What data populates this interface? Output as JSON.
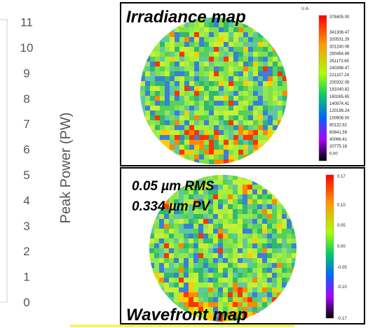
{
  "axis": {
    "label": "Peak Power (PW)",
    "ticks": [
      "0",
      "1",
      "2",
      "3",
      "4",
      "5",
      "6",
      "7",
      "8",
      "9",
      "10",
      "11"
    ]
  },
  "irradiance": {
    "title": "Irradiance map",
    "unit": "U.A.",
    "colorbar": [
      "378405.00",
      "341306.47",
      "320531.29",
      "301240.06",
      "280464.88",
      "261173.65",
      "240398.47",
      "221107.24",
      "200332.06",
      "181040.82",
      "160265.65",
      "140974.41",
      "120199.24",
      "100908.00",
      "80132.82",
      "60841.59",
      "40066.41",
      "20775.18",
      "0.00"
    ]
  },
  "wavefront": {
    "title": "Wavefront map",
    "rms": "0.05 µm RMS",
    "pv": "0.334 µm PV",
    "colorbar": [
      "0.17",
      "0.10",
      "0.05",
      "0.00",
      "-0.05",
      "-0.10",
      "-0.17"
    ]
  }
}
